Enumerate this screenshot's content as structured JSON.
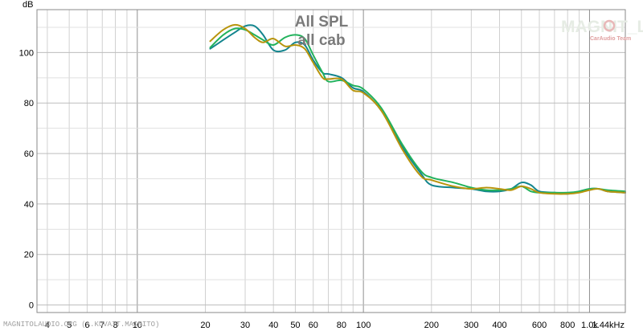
{
  "chart_data": {
    "type": "line",
    "title": "All SPL",
    "subtitle": "all cab",
    "ylabel": "dB",
    "xlabel": "",
    "x_scale": "log",
    "xlim": [
      3.6,
      1440
    ],
    "ylim": [
      -3,
      117
    ],
    "grid": true,
    "y_ticks": [
      0,
      20,
      40,
      60,
      80,
      100
    ],
    "x_tick_labels": [
      {
        "v": 4,
        "label": "4"
      },
      {
        "v": 5,
        "label": "5"
      },
      {
        "v": 6,
        "label": "6"
      },
      {
        "v": 7,
        "label": "7"
      },
      {
        "v": 8,
        "label": "8"
      },
      {
        "v": 10,
        "label": "10"
      },
      {
        "v": 20,
        "label": "20"
      },
      {
        "v": 30,
        "label": "30"
      },
      {
        "v": 40,
        "label": "40"
      },
      {
        "v": 50,
        "label": "50"
      },
      {
        "v": 60,
        "label": "60"
      },
      {
        "v": 80,
        "label": "80"
      },
      {
        "v": 100,
        "label": "100"
      },
      {
        "v": 200,
        "label": "200"
      },
      {
        "v": 300,
        "label": "300"
      },
      {
        "v": 400,
        "label": "400"
      },
      {
        "v": 600,
        "label": "600"
      },
      {
        "v": 800,
        "label": "800"
      },
      {
        "v": 1000,
        "label": "1.0k"
      },
      {
        "v": 1440,
        "label": "1.44kHz"
      }
    ],
    "series": [
      {
        "color": "#13858e",
        "x": [
          21,
          24,
          27,
          30,
          33,
          36,
          40,
          45,
          50,
          55,
          60,
          66,
          70,
          80,
          90,
          100,
          120,
          150,
          180,
          200,
          250,
          300,
          350,
          400,
          450,
          500,
          550,
          600,
          700,
          800,
          900,
          1000,
          1100,
          1200,
          1440
        ],
        "y": [
          101.5,
          105,
          108,
          110.5,
          110.5,
          107,
          101,
          101,
          104,
          103,
          97,
          92,
          91.5,
          90,
          86,
          84.5,
          77,
          62,
          52,
          47.5,
          46.5,
          46,
          45,
          45,
          46,
          48.5,
          47.5,
          45,
          44.5,
          44,
          45,
          46,
          46,
          45,
          44.5
        ]
      },
      {
        "color": "#22b25c",
        "x": [
          21,
          24,
          27,
          30,
          33,
          36,
          40,
          45,
          50,
          55,
          60,
          66,
          70,
          80,
          90,
          100,
          120,
          150,
          180,
          200,
          250,
          300,
          350,
          400,
          450,
          500,
          550,
          600,
          700,
          800,
          900,
          1000,
          1100,
          1200,
          1440
        ],
        "y": [
          102,
          107,
          109.5,
          109,
          107,
          105,
          103,
          106,
          107,
          105.5,
          99,
          92,
          88.5,
          89,
          87,
          85.5,
          78,
          63,
          53,
          50.5,
          48.5,
          46.5,
          45.5,
          45.5,
          46,
          47,
          45,
          44.5,
          44.5,
          44.5,
          45,
          46,
          46,
          45.5,
          45
        ]
      },
      {
        "color": "#b8940c",
        "x": [
          21,
          24,
          27,
          30,
          33,
          36,
          40,
          45,
          50,
          55,
          60,
          66,
          70,
          80,
          90,
          100,
          120,
          150,
          180,
          200,
          250,
          300,
          350,
          400,
          450,
          500,
          550,
          600,
          700,
          800,
          900,
          1000,
          1100,
          1200,
          1440
        ],
        "y": [
          104.5,
          109,
          111,
          109.5,
          106,
          104,
          105.5,
          102.5,
          103,
          101.5,
          96,
          90,
          89.5,
          89.5,
          85,
          84,
          77,
          61,
          51,
          49.5,
          47,
          46,
          46.5,
          46,
          45.5,
          47,
          46,
          44.5,
          44,
          44,
          44.5,
          45.5,
          46,
          45,
          44.5
        ]
      }
    ]
  },
  "watermark": {
    "brand": "MAGNIT_LA",
    "sub": "CarAudio Team"
  },
  "footer_text": "MAGNITOLAUDIO.ORG (A.KUVAIT.MAGNITO)"
}
